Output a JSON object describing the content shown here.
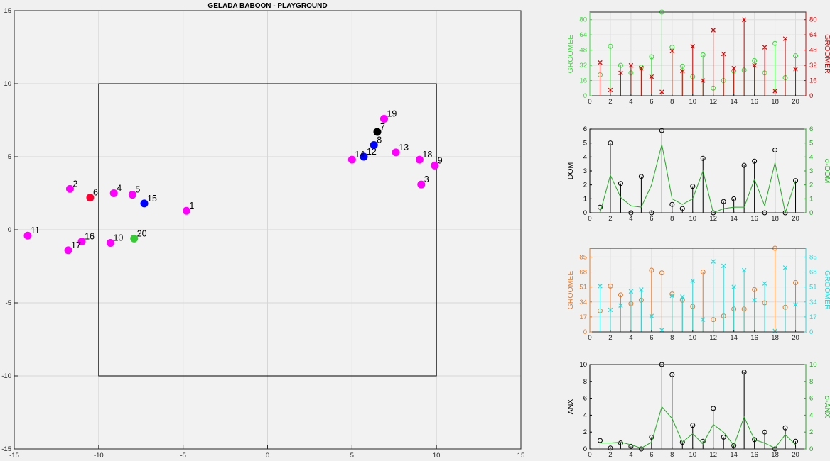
{
  "chart_data": [
    {
      "id": "main",
      "type": "scatter",
      "title": "GELADA BABOON - PLAYGROUND",
      "xlim": [
        -15,
        15
      ],
      "ylim": [
        -15,
        15
      ],
      "xticks": [
        -15,
        -10,
        -5,
        0,
        5,
        10,
        15
      ],
      "yticks": [
        -15,
        -10,
        -5,
        0,
        5,
        10,
        15
      ],
      "grid": true,
      "playground_rect": {
        "x": [
          -10,
          10
        ],
        "y": [
          -10,
          10
        ]
      },
      "colors": {
        "default": "#ff00ff",
        "blue": "#0000ff",
        "black": "#000000",
        "red": "#ff0033",
        "green": "#33cc33"
      },
      "points": [
        {
          "label": "1",
          "x": -4.8,
          "y": 1.3,
          "color": "#ff00ff"
        },
        {
          "label": "2",
          "x": -11.7,
          "y": 2.8,
          "color": "#ff00ff"
        },
        {
          "label": "3",
          "x": 9.1,
          "y": 3.1,
          "color": "#ff00ff"
        },
        {
          "label": "4",
          "x": -9.1,
          "y": 2.5,
          "color": "#ff00ff"
        },
        {
          "label": "5",
          "x": -8.0,
          "y": 2.4,
          "color": "#ff00ff"
        },
        {
          "label": "6",
          "x": -10.5,
          "y": 2.2,
          "color": "#ff0033"
        },
        {
          "label": "7",
          "x": 6.5,
          "y": 6.7,
          "color": "#000000"
        },
        {
          "label": "8",
          "x": 6.3,
          "y": 5.8,
          "color": "#0000ff"
        },
        {
          "label": "9",
          "x": 9.9,
          "y": 4.4,
          "color": "#ff00ff"
        },
        {
          "label": "10",
          "x": -9.3,
          "y": -0.9,
          "color": "#ff00ff"
        },
        {
          "label": "11",
          "x": -14.2,
          "y": -0.4,
          "color": "#ff00ff"
        },
        {
          "label": "12",
          "x": 5.7,
          "y": 5.0,
          "color": "#0000ff"
        },
        {
          "label": "13",
          "x": 7.6,
          "y": 5.3,
          "color": "#ff00ff"
        },
        {
          "label": "14",
          "x": 5.0,
          "y": 4.8,
          "color": "#ff00ff"
        },
        {
          "label": "15",
          "x": -7.3,
          "y": 1.8,
          "color": "#0000ff"
        },
        {
          "label": "16",
          "x": -11.0,
          "y": -0.8,
          "color": "#ff00ff"
        },
        {
          "label": "17",
          "x": -11.8,
          "y": -1.4,
          "color": "#ff00ff"
        },
        {
          "label": "18",
          "x": 9.0,
          "y": 4.8,
          "color": "#ff00ff"
        },
        {
          "label": "19",
          "x": 6.9,
          "y": 7.6,
          "color": "#ff00ff"
        },
        {
          "label": "20",
          "x": -7.9,
          "y": -0.6,
          "color": "#33cc33"
        }
      ]
    },
    {
      "id": "panel1",
      "type": "stem",
      "x": [
        1,
        2,
        3,
        4,
        5,
        6,
        7,
        8,
        9,
        10,
        11,
        12,
        13,
        14,
        15,
        16,
        17,
        18,
        19,
        20
      ],
      "xlim": [
        0,
        21
      ],
      "xticks": [
        0,
        2,
        4,
        6,
        8,
        10,
        12,
        14,
        16,
        18,
        20
      ],
      "left": {
        "label": "GROOMEE",
        "color": "#33dd33",
        "marker": "circle",
        "ylim": [
          0,
          88
        ],
        "yticks": [
          0,
          16,
          32,
          48,
          64,
          80
        ],
        "values": [
          22,
          52,
          32,
          24,
          30,
          41,
          88,
          51,
          31,
          20,
          43,
          8,
          16,
          26,
          27,
          37,
          24,
          55,
          19,
          42
        ]
      },
      "right": {
        "label": "GROOMER",
        "color": "#dd0000",
        "marker": "x",
        "ylim": [
          0,
          88
        ],
        "yticks": [
          0,
          16,
          32,
          48,
          64,
          80
        ],
        "values": [
          35,
          6,
          24,
          32,
          29,
          20,
          4,
          47,
          26,
          52,
          16,
          69,
          44,
          29,
          80,
          32,
          51,
          5,
          60,
          28
        ]
      },
      "grid": true
    },
    {
      "id": "panel2",
      "type": "stem+line",
      "x": [
        1,
        2,
        3,
        4,
        5,
        6,
        7,
        8,
        9,
        10,
        11,
        12,
        13,
        14,
        15,
        16,
        17,
        18,
        19,
        20
      ],
      "xlim": [
        0,
        21
      ],
      "xticks": [
        0,
        2,
        4,
        6,
        8,
        10,
        12,
        14,
        16,
        18,
        20
      ],
      "left": {
        "label": "DOM",
        "color": "#000000",
        "marker": "circle",
        "ylim": [
          0,
          6
        ],
        "yticks": [
          0,
          1,
          2,
          3,
          4,
          5,
          6
        ],
        "values": [
          0.4,
          5.0,
          2.1,
          0.0,
          2.6,
          0.0,
          5.9,
          0.6,
          0.3,
          1.9,
          3.9,
          0.0,
          0.8,
          1.0,
          3.4,
          3.7,
          0.0,
          4.5,
          0.0,
          2.3
        ]
      },
      "right": {
        "label": "σ-DOM",
        "color": "#22aa22",
        "ylim": [
          0,
          6
        ],
        "yticks": [
          0,
          1,
          2,
          3,
          4,
          5,
          6
        ],
        "values": [
          0.0,
          2.7,
          1.1,
          0.5,
          0.4,
          2.0,
          4.9,
          1.0,
          0.6,
          1.0,
          3.0,
          0.0,
          0.3,
          0.4,
          0.4,
          2.4,
          0.5,
          3.6,
          0.0,
          2.3
        ]
      },
      "grid": false
    },
    {
      "id": "panel3",
      "type": "stem",
      "x": [
        1,
        2,
        3,
        4,
        5,
        6,
        7,
        8,
        9,
        10,
        11,
        12,
        13,
        14,
        15,
        16,
        17,
        18,
        19,
        20
      ],
      "xlim": [
        0,
        21
      ],
      "xticks": [
        0,
        2,
        4,
        6,
        8,
        10,
        12,
        14,
        16,
        18,
        20
      ],
      "left": {
        "label": "GROOMEE",
        "color": "#ee7722",
        "marker": "circle",
        "ylim": [
          0,
          95
        ],
        "yticks": [
          0,
          17,
          34,
          51,
          68,
          85
        ],
        "values": [
          24,
          52,
          42,
          32,
          36,
          70,
          67,
          43,
          36,
          29,
          68,
          14,
          18,
          26,
          26,
          48,
          33,
          95,
          28,
          56
        ]
      },
      "right": {
        "label": "GROOMER",
        "color": "#22dddd",
        "marker": "x",
        "ylim": [
          0,
          95
        ],
        "yticks": [
          0,
          17,
          34,
          51,
          68,
          85
        ],
        "values": [
          52,
          25,
          30,
          46,
          48,
          18,
          2,
          41,
          40,
          58,
          14,
          80,
          75,
          51,
          70,
          36,
          55,
          1,
          73,
          31
        ]
      },
      "grid": true
    },
    {
      "id": "panel4",
      "type": "stem+line",
      "x": [
        1,
        2,
        3,
        4,
        5,
        6,
        7,
        8,
        9,
        10,
        11,
        12,
        13,
        14,
        15,
        16,
        17,
        18,
        19,
        20
      ],
      "xlim": [
        0,
        21
      ],
      "xticks": [
        0,
        2,
        4,
        6,
        8,
        10,
        12,
        14,
        16,
        18,
        20
      ],
      "left": {
        "label": "ANX",
        "color": "#000000",
        "marker": "circle",
        "ylim": [
          0,
          10
        ],
        "yticks": [
          0,
          2,
          4,
          6,
          8,
          10
        ],
        "values": [
          1.0,
          0.1,
          0.7,
          0.3,
          0.0,
          1.4,
          10.0,
          8.8,
          0.8,
          2.8,
          0.9,
          4.8,
          1.4,
          0.4,
          9.1,
          1.1,
          2.0,
          0.0,
          2.5,
          0.9
        ]
      },
      "right": {
        "label": "σ-ANX",
        "color": "#22aa22",
        "ylim": [
          0,
          10
        ],
        "yticks": [
          0,
          2,
          4,
          6,
          8,
          10
        ],
        "values": [
          0.7,
          0.7,
          0.8,
          0.5,
          0.1,
          0.8,
          5.0,
          3.6,
          0.8,
          1.8,
          0.6,
          2.9,
          2.0,
          0.4,
          3.8,
          1.1,
          0.7,
          0.1,
          1.7,
          0.5
        ]
      },
      "grid": false
    }
  ]
}
